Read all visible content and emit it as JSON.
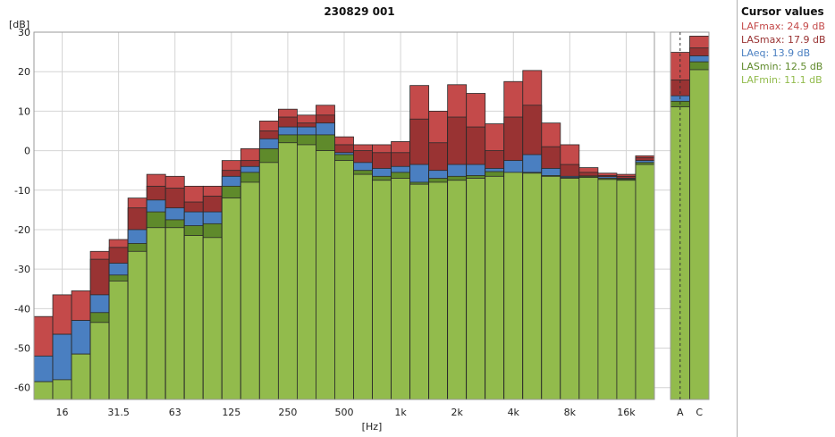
{
  "chart_data": {
    "type": "bar",
    "title": "230829 001",
    "ylabel": "[dB]",
    "xlabel": "[Hz]",
    "ylim": [
      -63,
      30
    ],
    "yticks": [
      30,
      20,
      10,
      0,
      -10,
      -20,
      -30,
      -40,
      -50,
      -60
    ],
    "grid": true,
    "legend_placement": "right",
    "bands": [
      "12.5",
      "16",
      "20",
      "25",
      "31.5",
      "40",
      "50",
      "63",
      "80",
      "100",
      "125",
      "160",
      "200",
      "250",
      "315",
      "400",
      "500",
      "630",
      "800",
      "1k",
      "1.25k",
      "1.6k",
      "2k",
      "2.5k",
      "3.15k",
      "4k",
      "5k",
      "6.3k",
      "8k",
      "10k",
      "12.5k",
      "16k",
      "20k"
    ],
    "band_tick_labels": [
      {
        "band": 1,
        "label": "16"
      },
      {
        "band": 4,
        "label": "31.5"
      },
      {
        "band": 7,
        "label": "63"
      },
      {
        "band": 10,
        "label": "125"
      },
      {
        "band": 13,
        "label": "250"
      },
      {
        "band": 16,
        "label": "500"
      },
      {
        "band": 19,
        "label": "1k"
      },
      {
        "band": 22,
        "label": "2k"
      },
      {
        "band": 25,
        "label": "4k"
      },
      {
        "band": 28,
        "label": "8k"
      },
      {
        "band": 31,
        "label": "16k"
      }
    ],
    "overall_categories": [
      "A",
      "C"
    ],
    "series": [
      {
        "name": "LAFmax",
        "color": "#c44a4a",
        "values": [
          -42,
          -36.5,
          -35.5,
          -25.5,
          -22.5,
          -12,
          -6,
          -6.5,
          -9,
          -9,
          -2.5,
          0.5,
          7.5,
          10.5,
          9,
          11.5,
          3.5,
          1.5,
          1.5,
          2.3,
          16.5,
          10,
          16.7,
          14.5,
          6.8,
          17.5,
          20.3,
          7,
          1.5,
          -4.3,
          -5.7,
          -6,
          -1.3
        ],
        "overall": [
          24.9,
          29
        ]
      },
      {
        "name": "LASmax",
        "color": "#993333",
        "values": [
          -52,
          -46.5,
          -43,
          -27.5,
          -24.5,
          -14.5,
          -9,
          -9.5,
          -13,
          -11.5,
          -5,
          -2.5,
          5,
          8.5,
          7,
          9,
          1.5,
          0,
          -0.5,
          -0.5,
          8,
          2,
          8.5,
          6,
          0,
          8.5,
          11.5,
          1,
          -3.5,
          -5.5,
          -6.3,
          -6.5,
          -1.8
        ],
        "overall": [
          17.9,
          26
        ]
      },
      {
        "name": "LAeq",
        "color": "#4a7fc1",
        "values": [
          -52,
          -46.5,
          -43,
          -36.5,
          -28.5,
          -20,
          -12.5,
          -14.5,
          -15.5,
          -15.5,
          -6.5,
          -4,
          3,
          6,
          6,
          7,
          -0.5,
          -3,
          -4.5,
          -4,
          -3.5,
          -5,
          -3.5,
          -3.5,
          -4.5,
          -2.5,
          -1,
          -4.5,
          -6.5,
          -6.4,
          -6.6,
          -7,
          -2.5
        ],
        "overall": [
          13.9,
          24
        ]
      },
      {
        "name": "LASmin",
        "color": "#5f8a2b",
        "values": [
          -58.5,
          -58,
          -51.5,
          -41,
          -31.5,
          -23.5,
          -15.5,
          -17.5,
          -19,
          -18.5,
          -9,
          -5.5,
          0.5,
          4,
          4,
          4,
          -1,
          -5,
          -6.5,
          -5.5,
          -8,
          -7,
          -6.5,
          -6.3,
          -5.3,
          -5.5,
          -5.5,
          -6.3,
          -6.8,
          -6.5,
          -7,
          -7.2,
          -3
        ],
        "overall": [
          12.5,
          22.5
        ]
      },
      {
        "name": "LAFmin",
        "color": "#92bb4c",
        "values": [
          -58.5,
          -58,
          -51.5,
          -43.5,
          -33,
          -25.5,
          -19.5,
          -19.5,
          -21.5,
          -22,
          -12,
          -8,
          -3,
          2,
          1.5,
          0,
          -2.5,
          -6,
          -7.5,
          -7,
          -8.5,
          -8,
          -7.5,
          -7,
          -6.5,
          -5.5,
          -5.7,
          -6.5,
          -7,
          -6.8,
          -7.3,
          -7.5,
          -3.5
        ],
        "overall": [
          11.1,
          20.5
        ]
      }
    ]
  },
  "legend": {
    "title": "Cursor values",
    "entries": [
      {
        "text": "LAFmax: 24.9 dB",
        "color": "#c44a4a"
      },
      {
        "text": "LASmax: 17.9 dB",
        "color": "#993333"
      },
      {
        "text": "LAeq: 13.9 dB",
        "color": "#4a7fc1"
      },
      {
        "text": "LASmin: 12.5 dB",
        "color": "#5f8a2b"
      },
      {
        "text": "LAFmin: 11.1 dB",
        "color": "#92bb4c"
      }
    ]
  }
}
